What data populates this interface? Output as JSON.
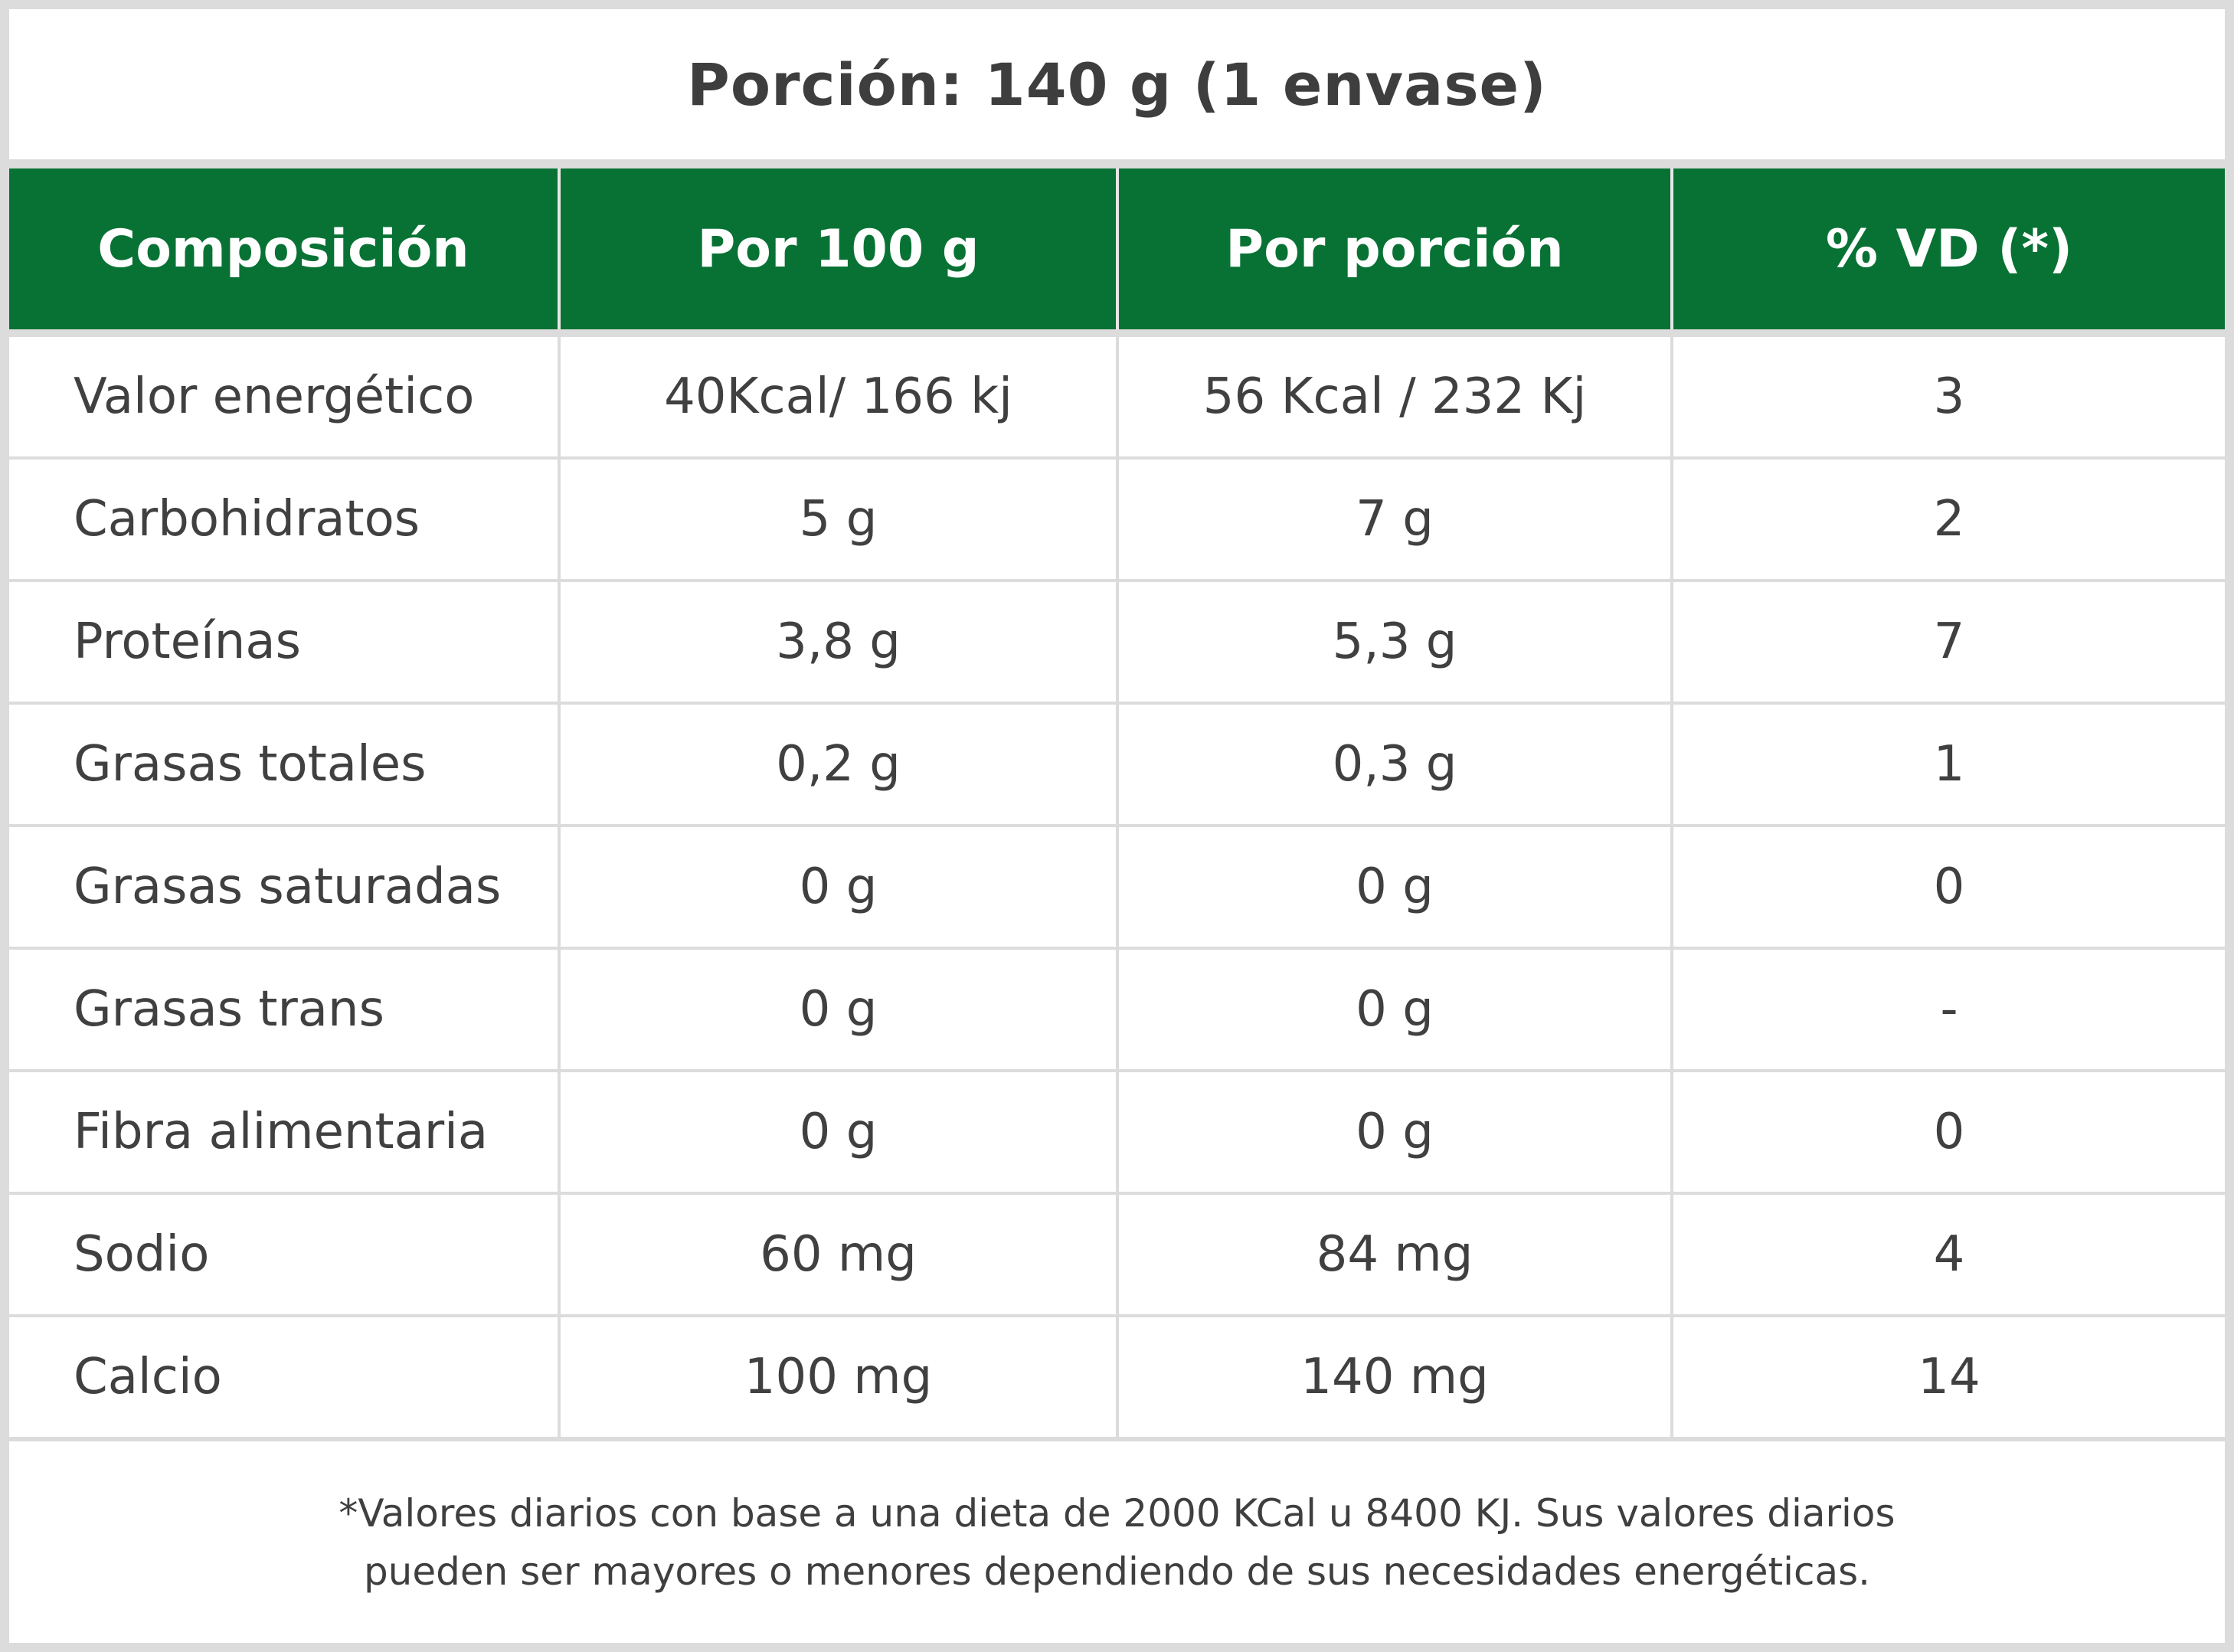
{
  "header": {
    "title": "Porción: 140 g (1 envase)"
  },
  "table": {
    "columns": [
      "Composición",
      "Por 100 g",
      "Por porción",
      "% VD (*)"
    ],
    "rows": [
      [
        "Valor energético",
        "40Kcal/ 166 kj",
        "56 Kcal / 232 Kj",
        "3"
      ],
      [
        "Carbohidratos",
        "5 g",
        "7 g",
        "2"
      ],
      [
        "Proteínas",
        "3,8 g",
        "5,3 g",
        "7"
      ],
      [
        "Grasas totales",
        "0,2 g",
        "0,3 g",
        "1"
      ],
      [
        "Grasas saturadas",
        "0 g",
        "0 g",
        "0"
      ],
      [
        "Grasas trans",
        "0 g",
        "0 g",
        "-"
      ],
      [
        "Fibra alimentaria",
        "0 g",
        "0 g",
        "0"
      ],
      [
        "Sodio",
        "60 mg",
        "84 mg",
        "4"
      ],
      [
        "Calcio",
        "100 mg",
        "140 mg",
        "14"
      ]
    ]
  },
  "footer": {
    "line1": "*Valores diarios con base a una dieta de 2000 KCal u 8400 KJ. Sus valores diarios",
    "line2": "pueden ser mayores o menores dependiendo de sus necesidades energéticas."
  },
  "colors": {
    "header_green": "#087234",
    "border_gray": "#dcdcdc",
    "text": "#404040"
  }
}
